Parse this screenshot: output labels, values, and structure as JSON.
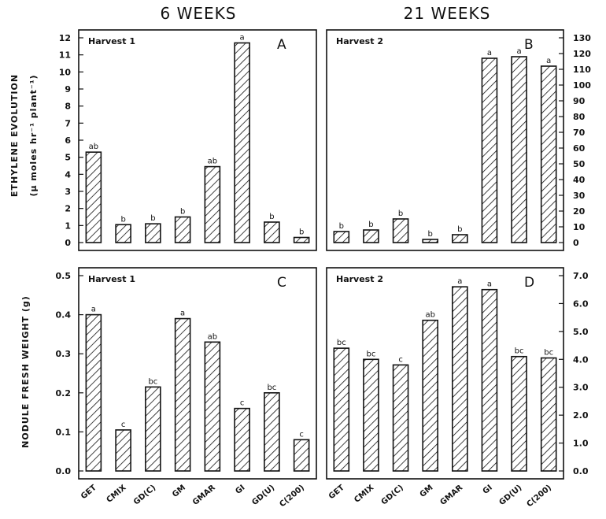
{
  "figure": {
    "col_titles": [
      "6 WEEKS",
      "21 WEEKS"
    ],
    "ylabel_top": [
      "ETHYLENE EVOLUTION",
      "(µ moles hr⁻¹ plant⁻¹)"
    ],
    "ylabel_bottom": "NODULE FRESH WEIGHT (g)"
  },
  "chart_data": [
    {
      "type": "bar",
      "panel": "A",
      "label": "Harvest 1",
      "categories": [
        "GET",
        "CMIX",
        "GD(C)",
        "GM",
        "GMAR",
        "GI",
        "GD(U)",
        "C(200)"
      ],
      "values": [
        5.3,
        1.05,
        1.1,
        1.5,
        4.45,
        11.7,
        1.2,
        0.3
      ],
      "sig": [
        "ab",
        "b",
        "b",
        "b",
        "ab",
        "a",
        "b",
        "b"
      ],
      "ylim": [
        0,
        12
      ],
      "yticks": [
        "0",
        "1",
        "2",
        "3",
        "4",
        "5",
        "6",
        "7",
        "8",
        "9",
        "10",
        "11",
        "12"
      ],
      "y_axis_side": "left"
    },
    {
      "type": "bar",
      "panel": "B",
      "label": "Harvest 2",
      "categories": [
        "GET",
        "CMIX",
        "GD(C)",
        "GM",
        "GMAR",
        "GI",
        "GD(U)",
        "C(200)"
      ],
      "values": [
        7,
        8,
        15,
        2,
        5,
        117,
        118,
        112
      ],
      "sig": [
        "b",
        "b",
        "b",
        "b",
        "b",
        "a",
        "a",
        "a"
      ],
      "ylim": [
        0,
        130
      ],
      "yticks": [
        "0",
        "10",
        "20",
        "30",
        "40",
        "50",
        "60",
        "70",
        "80",
        "90",
        "100",
        "110",
        "120",
        "130"
      ],
      "y_axis_side": "right"
    },
    {
      "type": "bar",
      "panel": "C",
      "label": "Harvest 1",
      "categories": [
        "GET",
        "CMIX",
        "GD(C)",
        "GM",
        "GMAR",
        "GI",
        "GD(U)",
        "C(200)"
      ],
      "values": [
        0.4,
        0.105,
        0.215,
        0.39,
        0.33,
        0.16,
        0.2,
        0.08
      ],
      "sig": [
        "a",
        "c",
        "bc",
        "a",
        "ab",
        "c",
        "bc",
        "c"
      ],
      "ylim": [
        0,
        0.5
      ],
      "yticks": [
        "0.0",
        "0.1",
        "0.2",
        "0.3",
        "0.4",
        "0.5"
      ],
      "y_axis_side": "left"
    },
    {
      "type": "bar",
      "panel": "D",
      "label": "Harvest 2",
      "categories": [
        "GET",
        "CMIX",
        "GD(C)",
        "GM",
        "GMAR",
        "GI",
        "GD(U)",
        "C(200)"
      ],
      "values": [
        4.4,
        4.0,
        3.8,
        5.4,
        6.6,
        6.5,
        4.1,
        4.05
      ],
      "sig": [
        "bc",
        "bc",
        "c",
        "ab",
        "a",
        "a",
        "bc",
        "bc"
      ],
      "ylim": [
        0,
        7
      ],
      "yticks": [
        "0.0",
        "1.0",
        "2.0",
        "3.0",
        "4.0",
        "5.0",
        "6.0",
        "7.0"
      ],
      "y_axis_side": "right"
    }
  ]
}
